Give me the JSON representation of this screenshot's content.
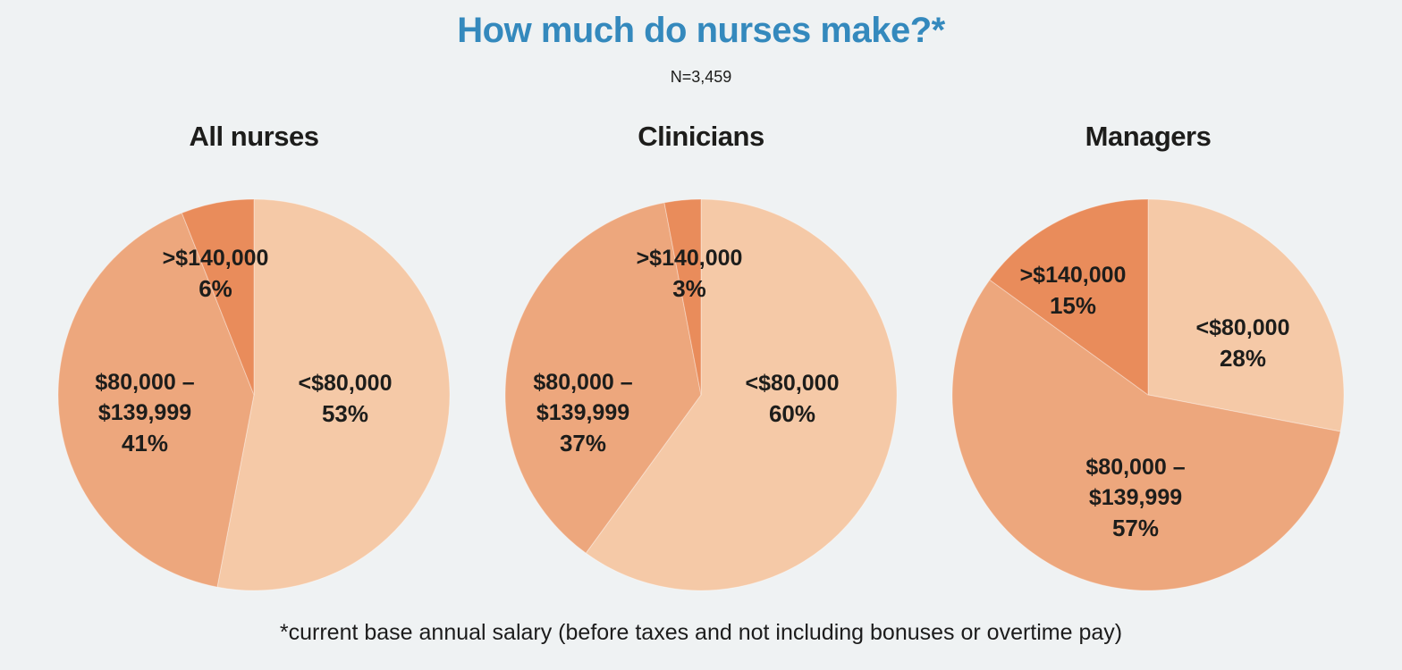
{
  "page": {
    "title": "How much do nurses make?*",
    "sample_size": "N=3,459",
    "footnote": "*current base annual salary (before taxes and not including bonuses or overtime pay)",
    "background_color": "#eff2f3",
    "title_color": "#3489bd",
    "text_color": "#1d1d1b"
  },
  "chart_data": [
    {
      "type": "pie",
      "title": "All nurses",
      "start_angle_deg": 0,
      "direction": "clockwise",
      "legend": "none",
      "labels_position": "inside",
      "slices": [
        {
          "label": "<$80,000",
          "label_lines": [
            "<$80,000"
          ],
          "value": 53,
          "pct": "53%",
          "color": "#f5c9a7"
        },
        {
          "label": "$80,000 – $139,999",
          "label_lines": [
            "$80,000 –",
            "$139,999"
          ],
          "value": 41,
          "pct": "41%",
          "color": "#eda77d"
        },
        {
          "label": ">$140,000",
          "label_lines": [
            ">$140,000"
          ],
          "value": 6,
          "pct": "6%",
          "color": "#e98c5b"
        }
      ]
    },
    {
      "type": "pie",
      "title": "Clinicians",
      "start_angle_deg": 0,
      "direction": "clockwise",
      "legend": "none",
      "labels_position": "inside",
      "slices": [
        {
          "label": "<$80,000",
          "label_lines": [
            "<$80,000"
          ],
          "value": 60,
          "pct": "60%",
          "color": "#f5c9a7"
        },
        {
          "label": "$80,000 – $139,999",
          "label_lines": [
            "$80,000 –",
            "$139,999"
          ],
          "value": 37,
          "pct": "37%",
          "color": "#eda77d"
        },
        {
          "label": ">$140,000",
          "label_lines": [
            ">$140,000"
          ],
          "value": 3,
          "pct": "3%",
          "color": "#e98c5b"
        }
      ]
    },
    {
      "type": "pie",
      "title": "Managers",
      "start_angle_deg": 0,
      "direction": "clockwise",
      "legend": "none",
      "labels_position": "inside",
      "slices": [
        {
          "label": "<$80,000",
          "label_lines": [
            "<$80,000"
          ],
          "value": 28,
          "pct": "28%",
          "color": "#f5c9a7"
        },
        {
          "label": "$80,000 – $139,999",
          "label_lines": [
            "$80,000 –",
            "$139,999"
          ],
          "value": 57,
          "pct": "57%",
          "color": "#eda77d"
        },
        {
          "label": ">$140,000",
          "label_lines": [
            ">$140,000"
          ],
          "value": 15,
          "pct": "15%",
          "color": "#e98c5b"
        }
      ]
    }
  ]
}
